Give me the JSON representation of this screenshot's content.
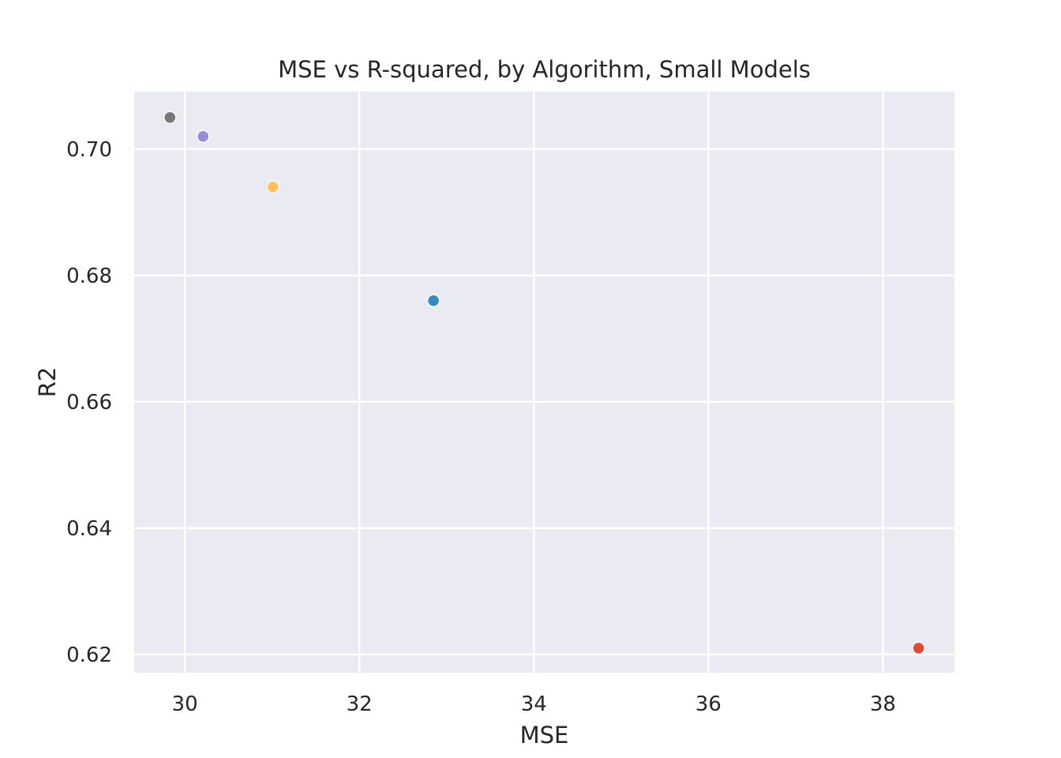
{
  "chart_data": {
    "type": "scatter",
    "title": "MSE vs R-squared, by Algorithm, Small Models",
    "xlabel": "MSE",
    "ylabel": "R2",
    "xlim": [
      29.42,
      38.82
    ],
    "ylim": [
      0.6171,
      0.7091
    ],
    "xticks": [
      30,
      32,
      34,
      36,
      38
    ],
    "yticks": [
      0.62,
      0.64,
      0.66,
      0.68,
      0.7
    ],
    "xtick_labels": [
      "30",
      "32",
      "34",
      "36",
      "38"
    ],
    "ytick_labels": [
      "0.62",
      "0.64",
      "0.66",
      "0.68",
      "0.70"
    ],
    "grid": true,
    "points": [
      {
        "x": 29.83,
        "y": 0.705,
        "color": "#777777"
      },
      {
        "x": 30.21,
        "y": 0.702,
        "color": "#988ed5"
      },
      {
        "x": 31.01,
        "y": 0.694,
        "color": "#fbc15e"
      },
      {
        "x": 32.85,
        "y": 0.676,
        "color": "#348abd"
      },
      {
        "x": 38.41,
        "y": 0.621,
        "color": "#e24a33"
      }
    ]
  }
}
